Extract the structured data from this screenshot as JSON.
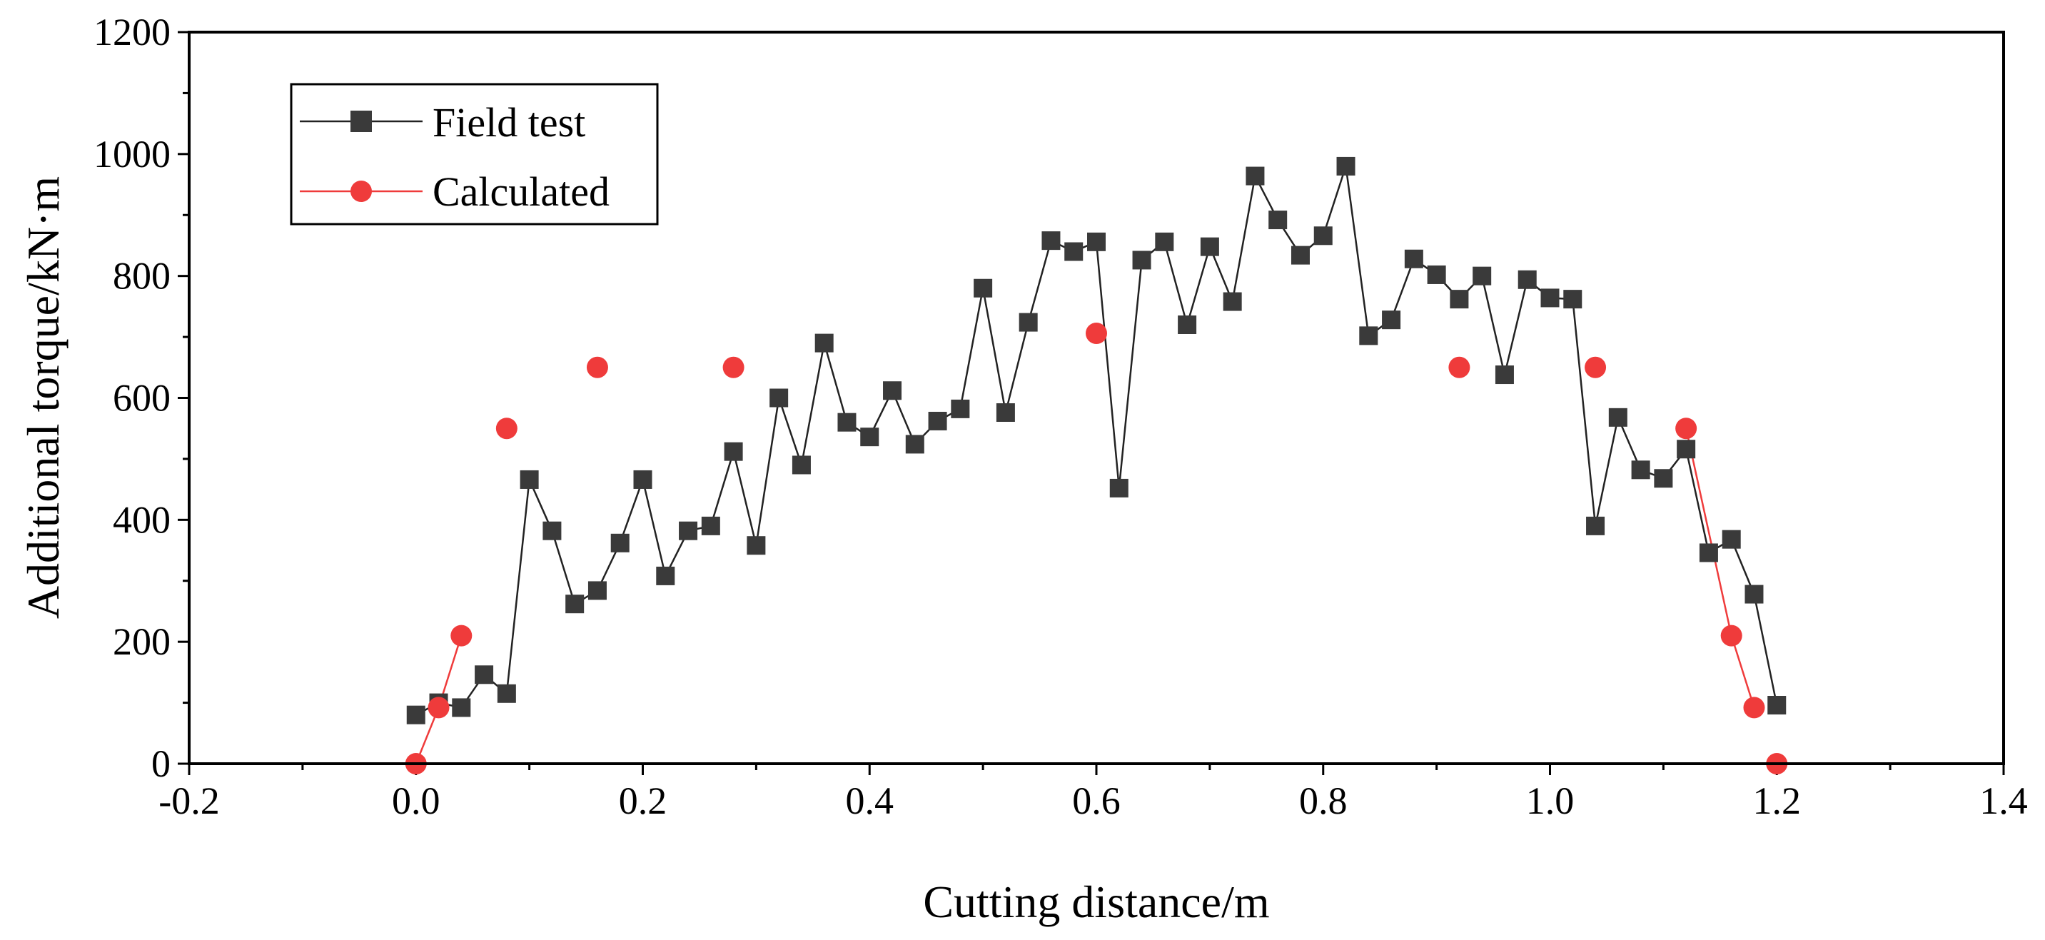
{
  "chart_data": {
    "type": "scatter",
    "title": "",
    "xlabel": "Cutting distance/m",
    "ylabel": "Additional torque/kN·m",
    "xlim": [
      -0.2,
      1.4
    ],
    "ylim": [
      0,
      1200
    ],
    "x_ticks": [
      -0.2,
      0.0,
      0.2,
      0.4,
      0.6,
      0.8,
      1.0,
      1.2,
      1.4
    ],
    "x_tick_labels": [
      "-0.2",
      "0.0",
      "0.2",
      "0.4",
      "0.6",
      "0.8",
      "1.0",
      "1.2",
      "1.4"
    ],
    "y_ticks": [
      0,
      200,
      400,
      600,
      800,
      1000,
      1200
    ],
    "y_tick_labels": [
      "0",
      "200",
      "400",
      "600",
      "800",
      "1000",
      "1200"
    ],
    "grid": false,
    "legend_position": "top-left",
    "series": [
      {
        "name": "Field test",
        "color": "#3a3a3a",
        "line_color": "#222222",
        "marker": "square",
        "line": true,
        "x": [
          0.0,
          0.02,
          0.04,
          0.06,
          0.08,
          0.1,
          0.12,
          0.14,
          0.16,
          0.18,
          0.2,
          0.22,
          0.24,
          0.26,
          0.28,
          0.3,
          0.32,
          0.34,
          0.36,
          0.38,
          0.4,
          0.42,
          0.44,
          0.46,
          0.48,
          0.5,
          0.52,
          0.54,
          0.56,
          0.58,
          0.6,
          0.62,
          0.64,
          0.66,
          0.68,
          0.7,
          0.72,
          0.74,
          0.76,
          0.78,
          0.8,
          0.82,
          0.84,
          0.86,
          0.88,
          0.9,
          0.92,
          0.94,
          0.96,
          0.98,
          1.0,
          1.02,
          1.04,
          1.06,
          1.08,
          1.1,
          1.12,
          1.14,
          1.16,
          1.18,
          1.2
        ],
        "y": [
          80,
          100,
          92,
          146,
          115,
          466,
          382,
          262,
          284,
          362,
          466,
          308,
          382,
          390,
          512,
          358,
          600,
          490,
          690,
          560,
          536,
          612,
          524,
          562,
          582,
          780,
          576,
          724,
          858,
          840,
          856,
          452,
          826,
          856,
          720,
          848,
          758,
          964,
          892,
          834,
          866,
          980,
          702,
          728,
          828,
          802,
          762,
          800,
          638,
          794,
          764,
          762,
          390,
          568,
          482,
          468,
          516,
          346,
          368,
          278,
          96
        ]
      },
      {
        "name": "Calculated",
        "color": "#ef3b3b",
        "line_color": "#ef3b3b",
        "marker": "circle",
        "line_segments": [
          [
            0,
            2
          ],
          [
            9,
            11
          ]
        ],
        "x": [
          0.0,
          0.02,
          0.04,
          0.08,
          0.16,
          0.28,
          0.6,
          0.92,
          1.04,
          1.12,
          1.16,
          1.18,
          1.2
        ],
        "y": [
          0,
          92,
          210,
          550,
          650,
          650,
          706,
          650,
          650,
          550,
          210,
          92,
          0
        ]
      }
    ]
  }
}
